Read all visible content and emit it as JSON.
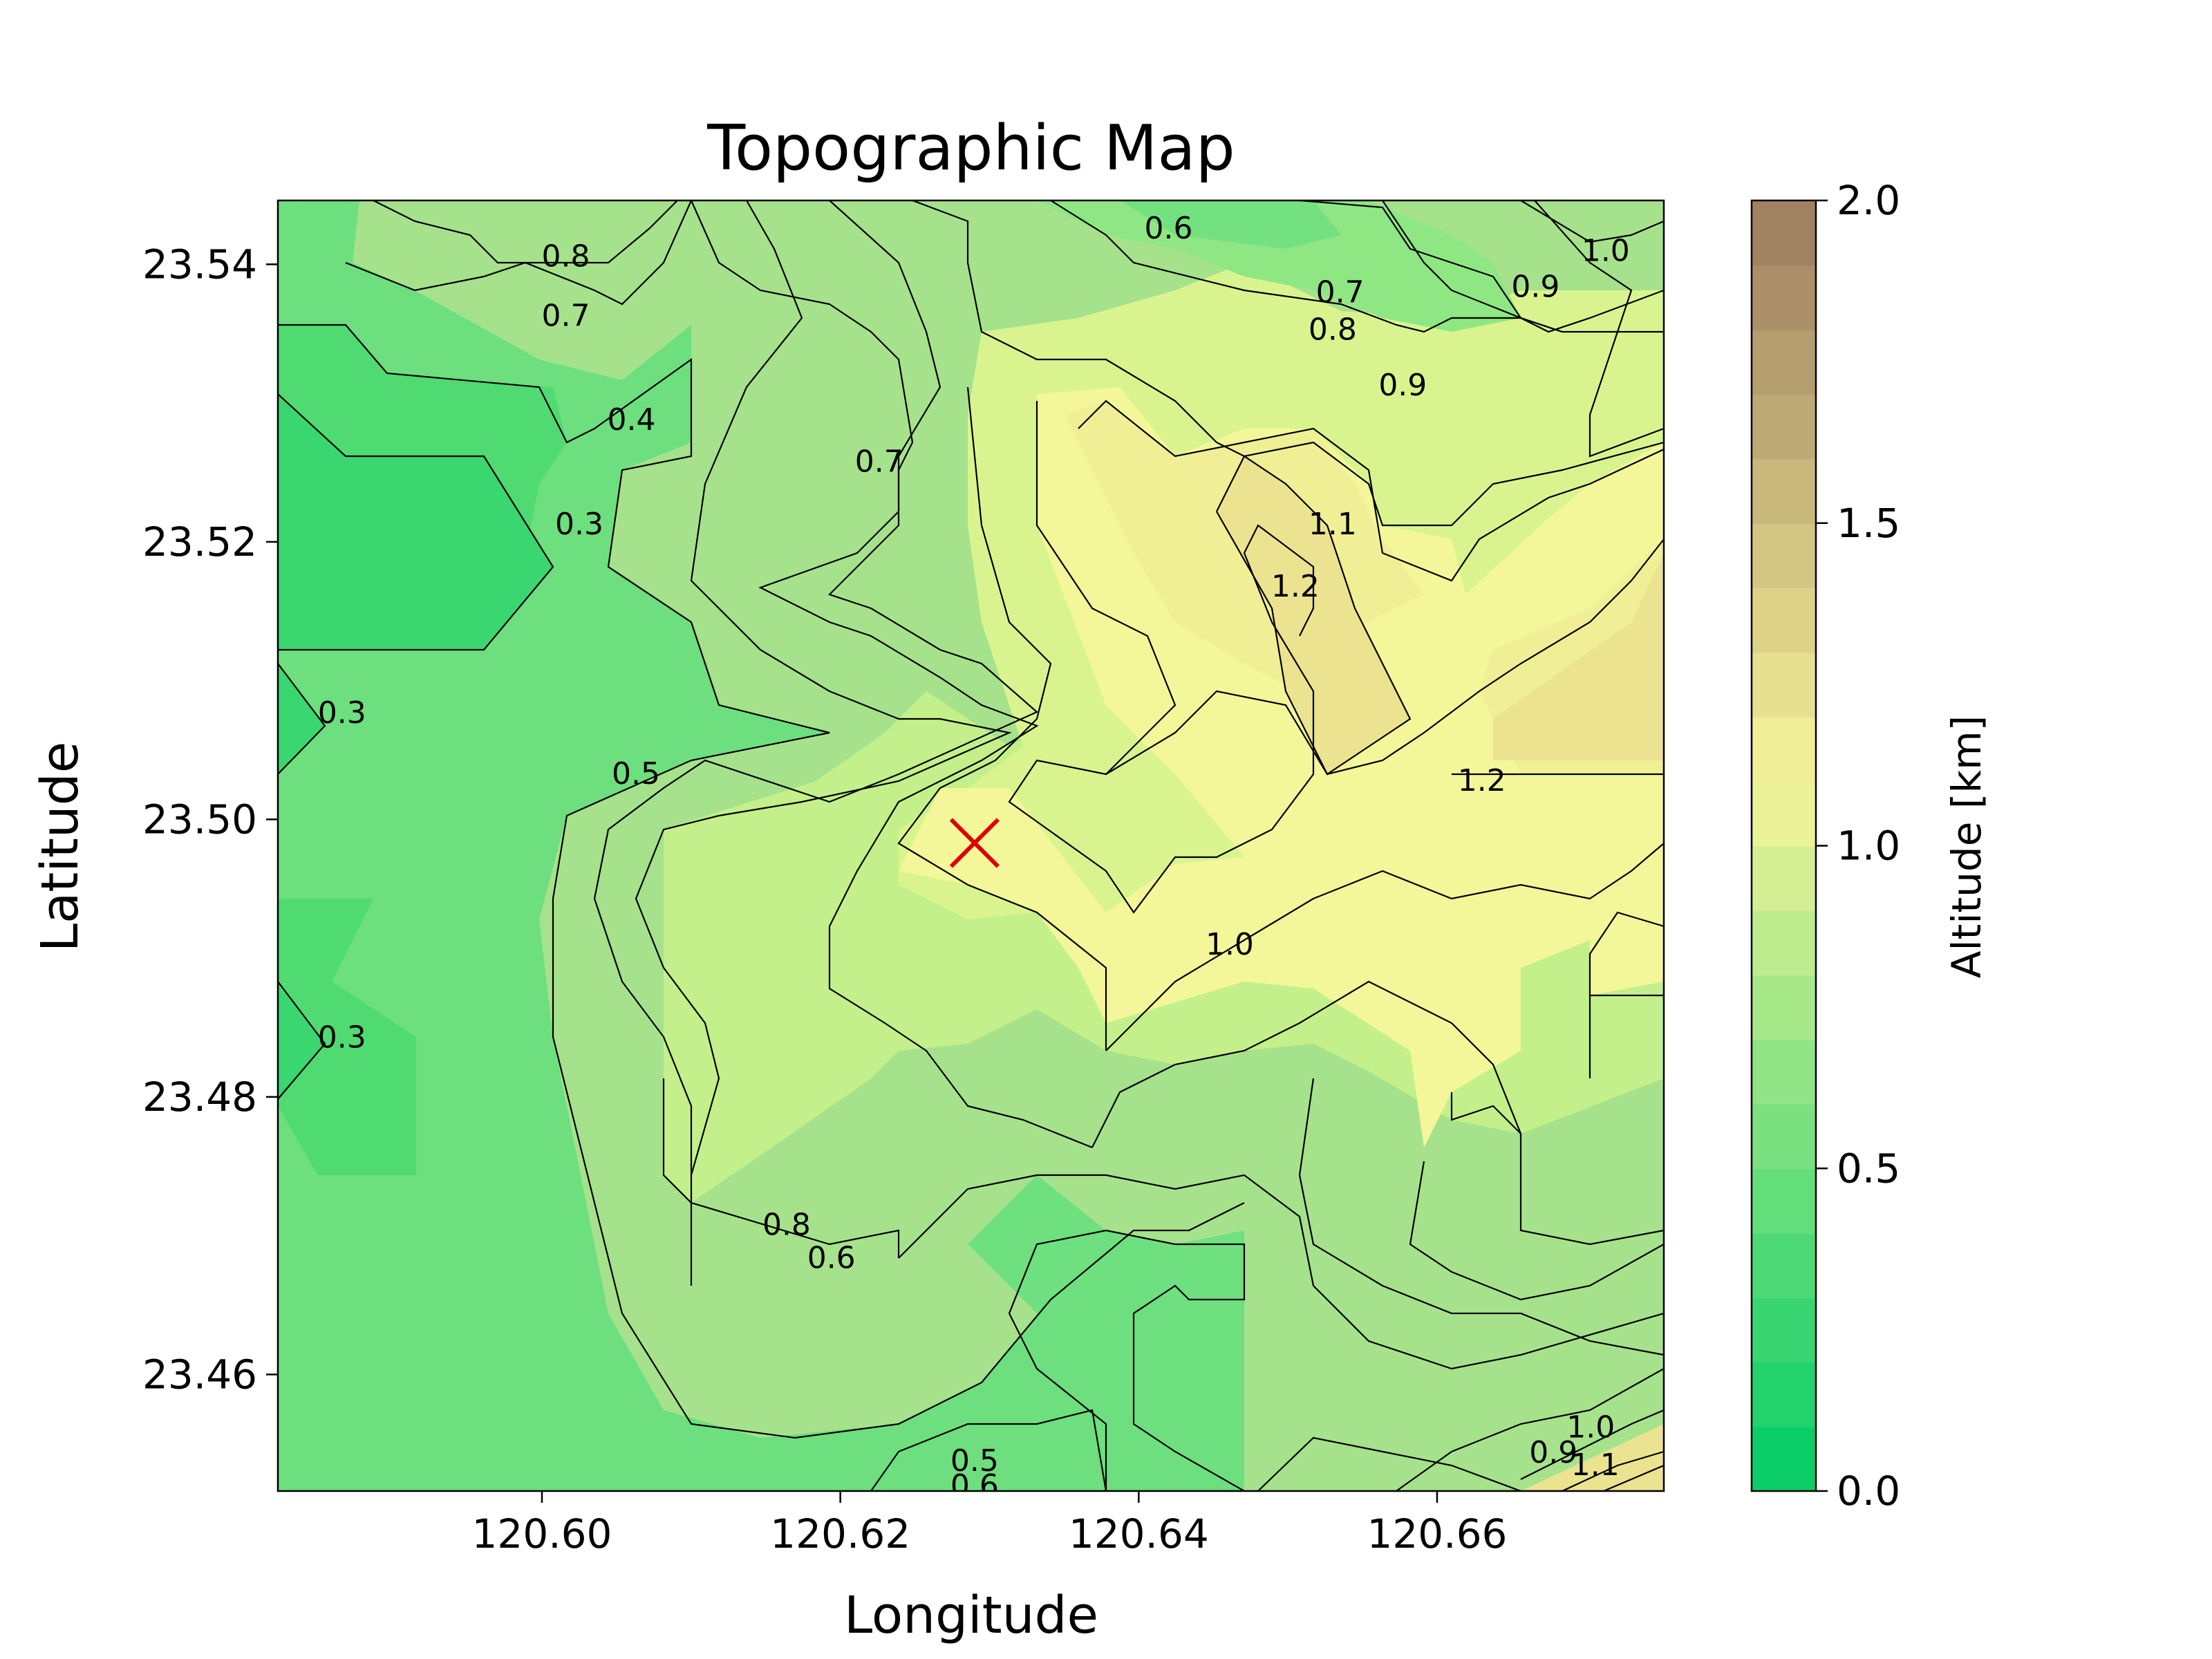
{
  "chart_data": {
    "type": "contour",
    "title": "Topographic Map",
    "xlabel": "Longitude",
    "ylabel": "Latitude",
    "xlim": [
      120.5823,
      120.6752
    ],
    "ylim": [
      23.4516,
      23.5446
    ],
    "x_ticks": [
      "120.60",
      "120.62",
      "120.64",
      "120.66"
    ],
    "y_ticks": [
      "23.46",
      "23.48",
      "23.50",
      "23.52",
      "23.54"
    ],
    "colorbar": {
      "label": "Altitude [km]",
      "range": [
        0.0,
        2.0
      ],
      "ticks": [
        "0.0",
        "0.5",
        "1.0",
        "1.5",
        "2.0"
      ],
      "low_color": "#00cc66",
      "mid_color": "#f5f59a",
      "high_color": "#9b7b5e"
    },
    "contour_levels": [
      0.3,
      0.4,
      0.5,
      0.6,
      0.7,
      0.8,
      0.9,
      1.0,
      1.1,
      1.2
    ],
    "contour_labels": [
      {
        "text": "0.8",
        "x": 120.6016,
        "y": 23.5406
      },
      {
        "text": "0.7",
        "x": 120.6016,
        "y": 23.5363
      },
      {
        "text": "0.6",
        "x": 120.642,
        "y": 23.5426
      },
      {
        "text": "0.7",
        "x": 120.6535,
        "y": 23.538
      },
      {
        "text": "0.8",
        "x": 120.653,
        "y": 23.5353
      },
      {
        "text": "0.9",
        "x": 120.6577,
        "y": 23.5313
      },
      {
        "text": "1.0",
        "x": 120.6713,
        "y": 23.541
      },
      {
        "text": "0.9",
        "x": 120.6666,
        "y": 23.5384
      },
      {
        "text": "0.4",
        "x": 120.606,
        "y": 23.5288
      },
      {
        "text": "0.3",
        "x": 120.6025,
        "y": 23.5213
      },
      {
        "text": "0.7",
        "x": 120.6226,
        "y": 23.5258
      },
      {
        "text": "1.1",
        "x": 120.653,
        "y": 23.5213
      },
      {
        "text": "1.2",
        "x": 120.6505,
        "y": 23.5168
      },
      {
        "text": "0.3",
        "x": 120.5866,
        "y": 23.5077
      },
      {
        "text": "0.5",
        "x": 120.6063,
        "y": 23.5033
      },
      {
        "text": "1.2",
        "x": 120.663,
        "y": 23.5028
      },
      {
        "text": "1.0",
        "x": 120.6461,
        "y": 23.491
      },
      {
        "text": "0.3",
        "x": 120.5866,
        "y": 23.4843
      },
      {
        "text": "0.8",
        "x": 120.6164,
        "y": 23.4708
      },
      {
        "text": "0.6",
        "x": 120.6194,
        "y": 23.4684
      },
      {
        "text": "0.5",
        "x": 120.629,
        "y": 23.4538
      },
      {
        "text": "0.6",
        "x": 120.629,
        "y": 23.452
      },
      {
        "text": "0.9",
        "x": 120.6678,
        "y": 23.4544
      },
      {
        "text": "1.0",
        "x": 120.6703,
        "y": 23.4562
      },
      {
        "text": "1.1",
        "x": 120.6706,
        "y": 23.4535
      }
    ],
    "marker": {
      "symbol": "x",
      "x": 120.629,
      "y": 23.4983,
      "color": "#dd0000"
    }
  }
}
